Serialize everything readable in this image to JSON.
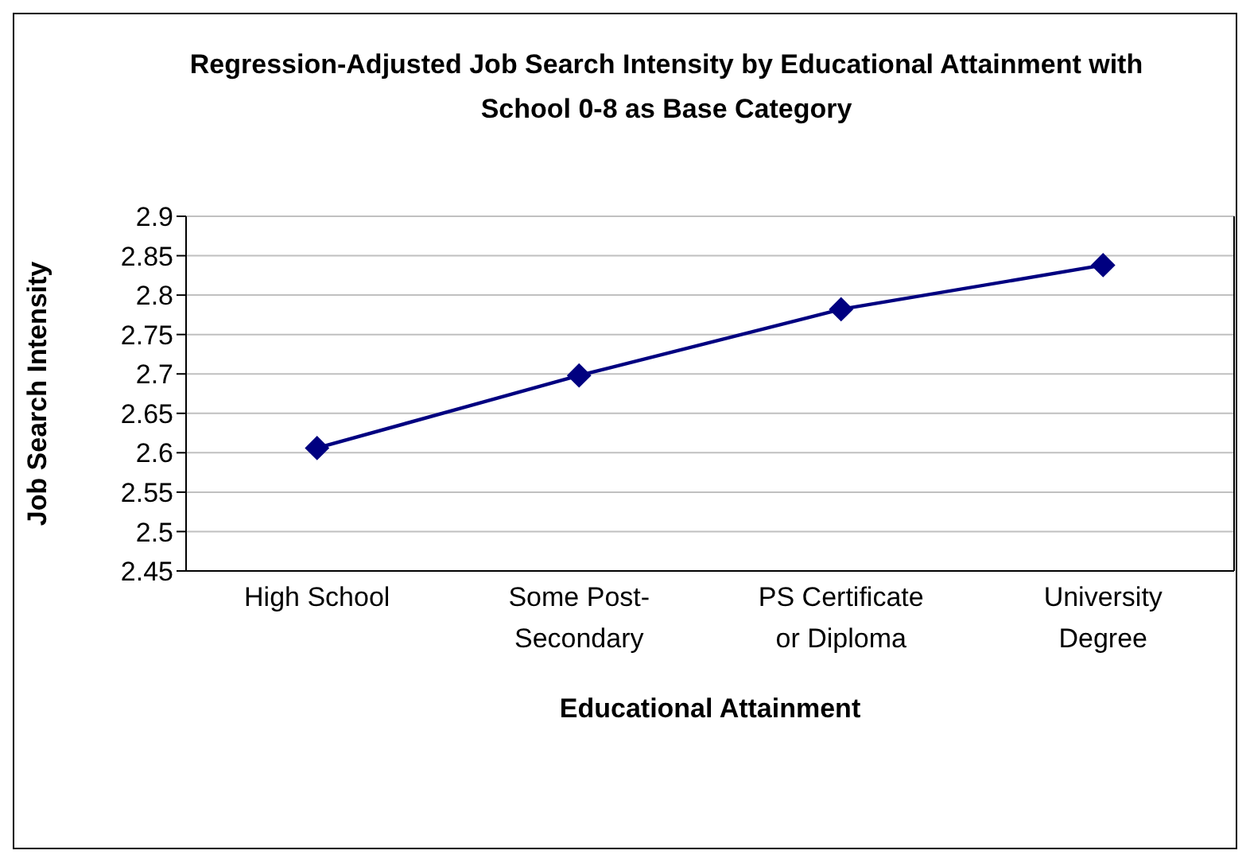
{
  "chart_data": {
    "type": "line",
    "title": "Regression-Adjusted Job Search Intensity by Educational Attainment with School 0-8 as Base Category",
    "xlabel": "Educational Attainment",
    "ylabel": "Job Search Intensity",
    "categories": [
      "High School",
      "Some Post-Secondary",
      "PS Certificate or Diploma",
      "University Degree"
    ],
    "series": [
      {
        "color": "#000080",
        "values": [
          2.606,
          2.698,
          2.782,
          2.838
        ]
      }
    ],
    "ylim": [
      2.45,
      2.9
    ],
    "yticks": [
      2.45,
      2.5,
      2.55,
      2.6,
      2.65,
      2.7,
      2.75,
      2.8,
      2.85,
      2.9
    ],
    "grid": "y",
    "marker": "diamond",
    "line_style": "solid",
    "legend": false
  }
}
